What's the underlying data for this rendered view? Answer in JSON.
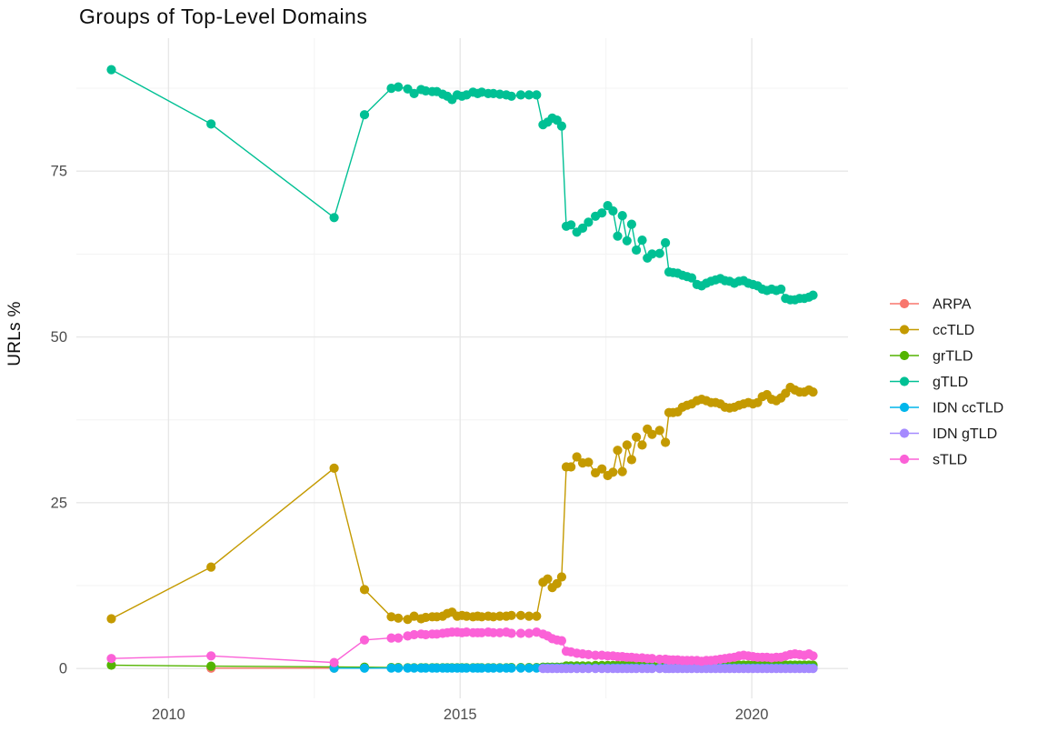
{
  "page": {
    "background": "#ffffff"
  },
  "chart_data": {
    "type": "line",
    "title": "Groups of Top-Level Domains",
    "xlabel": "",
    "ylabel": "URLs %",
    "grid": true,
    "legend_position": "right",
    "axis_text_color": "#4d4d4d",
    "grid_major_color": "#e7e7e7",
    "grid_minor_color": "#f3f3f3",
    "xlim": [
      2008.42,
      2021.65
    ],
    "ylim": [
      -4.5,
      95.05
    ],
    "x_ticks": [
      2010,
      2015,
      2020
    ],
    "x_tick_labels": [
      "2010",
      "2015",
      "2020"
    ],
    "x_minor_ticks": [
      2012.5,
      2017.5
    ],
    "y_ticks": [
      0,
      25,
      50,
      75
    ],
    "y_tick_labels": [
      "0",
      "25",
      "50",
      "75"
    ],
    "y_minor_ticks": [
      12.5,
      37.5,
      62.5,
      87.5
    ],
    "x_dense": [
      2013.82,
      2013.94,
      2014.1,
      2014.21,
      2014.33,
      2014.41,
      2014.52,
      2014.6,
      2014.7,
      2014.78,
      2014.86,
      2014.95,
      2015.03,
      2015.11,
      2015.22,
      2015.3,
      2015.37,
      2015.48,
      2015.57,
      2015.68,
      2015.79,
      2015.88,
      2016.04,
      2016.18,
      2016.31,
      2016.42,
      2016.5,
      2016.58,
      2016.66,
      2016.74,
      2016.82,
      2016.9,
      2017.0,
      2017.1,
      2017.2,
      2017.32,
      2017.43,
      2017.53,
      2017.62,
      2017.7,
      2017.78,
      2017.86,
      2017.94,
      2018.02,
      2018.12,
      2018.21,
      2018.29,
      2018.42,
      2018.52,
      2018.58,
      2018.65,
      2018.73,
      2018.81,
      2018.89,
      2018.97,
      2019.06,
      2019.14,
      2019.22,
      2019.3,
      2019.38,
      2019.46,
      2019.54,
      2019.62,
      2019.7,
      2019.78,
      2019.86,
      2019.94,
      2020.02,
      2020.1,
      2020.18,
      2020.26,
      2020.34,
      2020.42,
      2020.5,
      2020.58,
      2020.66,
      2020.74,
      2020.82,
      2020.9,
      2020.98,
      2021.05
    ],
    "series": [
      {
        "name": "ARPA",
        "color": "#F8766D",
        "early": [
          [
            2010.73,
            0.05
          ],
          [
            2012.84,
            0.05
          ]
        ]
      },
      {
        "name": "ccTLD",
        "color": "#C49A00",
        "early": [
          [
            2009.02,
            7.5
          ],
          [
            2010.73,
            15.3
          ],
          [
            2012.84,
            30.2
          ],
          [
            2013.36,
            11.9
          ]
        ],
        "dense": [
          7.8,
          7.6,
          7.4,
          7.9,
          7.5,
          7.7,
          7.8,
          7.8,
          7.9,
          8.3,
          8.5,
          7.9,
          8.0,
          7.9,
          7.8,
          7.9,
          7.8,
          7.9,
          7.8,
          7.9,
          7.9,
          8.0,
          8.0,
          7.9,
          7.9,
          13.0,
          13.5,
          12.2,
          12.8,
          13.8,
          30.4,
          30.4,
          31.9,
          31.0,
          31.1,
          29.5,
          30.1,
          29.1,
          29.6,
          32.9,
          29.7,
          33.7,
          31.5,
          34.9,
          33.7,
          36.1,
          35.3,
          35.9,
          34.1,
          38.6,
          38.6,
          38.7,
          39.4,
          39.7,
          39.9,
          40.4,
          40.6,
          40.4,
          40.1,
          40.1,
          39.9,
          39.4,
          39.3,
          39.4,
          39.7,
          39.9,
          40.1,
          39.9,
          40.1,
          41.0,
          41.3,
          40.6,
          40.4,
          40.8,
          41.5,
          42.4,
          42.0,
          41.7,
          41.7,
          42.0,
          41.7
        ]
      },
      {
        "name": "grTLD",
        "color": "#53B400",
        "early": [
          [
            2009.02,
            0.5
          ],
          [
            2010.73,
            0.35
          ],
          [
            2012.84,
            0.25
          ],
          [
            2013.36,
            0.2
          ]
        ],
        "dense": [
          0.15,
          0.15,
          0.12,
          0.12,
          0.12,
          0.12,
          0.12,
          0.12,
          0.12,
          0.12,
          0.12,
          0.12,
          0.12,
          0.12,
          0.12,
          0.12,
          0.12,
          0.12,
          0.12,
          0.12,
          0.12,
          0.15,
          0.15,
          0.15,
          0.15,
          0.2,
          0.2,
          0.2,
          0.2,
          0.2,
          0.4,
          0.4,
          0.4,
          0.4,
          0.4,
          0.45,
          0.45,
          0.45,
          0.45,
          0.45,
          0.45,
          0.45,
          0.45,
          0.45,
          0.45,
          0.45,
          0.45,
          0.45,
          0.45,
          0.45,
          0.45,
          0.45,
          0.45,
          0.45,
          0.45,
          0.45,
          0.45,
          0.45,
          0.45,
          0.45,
          0.45,
          0.45,
          0.45,
          0.5,
          0.5,
          0.5,
          0.5,
          0.5,
          0.5,
          0.5,
          0.5,
          0.5,
          0.5,
          0.5,
          0.5,
          0.5,
          0.5,
          0.5,
          0.5,
          0.5,
          0.5
        ]
      },
      {
        "name": "gTLD",
        "color": "#00C094",
        "early": [
          [
            2009.02,
            90.3
          ],
          [
            2010.73,
            82.1
          ],
          [
            2012.84,
            68.0
          ],
          [
            2013.36,
            83.5
          ]
        ],
        "dense": [
          87.5,
          87.7,
          87.4,
          86.7,
          87.3,
          87.1,
          87.0,
          87.0,
          86.6,
          86.3,
          85.8,
          86.5,
          86.3,
          86.5,
          86.9,
          86.7,
          86.9,
          86.7,
          86.7,
          86.6,
          86.5,
          86.3,
          86.5,
          86.5,
          86.5,
          82.0,
          82.4,
          83.0,
          82.7,
          81.8,
          66.7,
          66.9,
          65.8,
          66.4,
          67.3,
          68.2,
          68.7,
          69.8,
          69.0,
          65.2,
          68.3,
          64.5,
          67.0,
          63.1,
          64.6,
          61.9,
          62.5,
          62.6,
          64.2,
          59.8,
          59.7,
          59.6,
          59.3,
          59.1,
          58.9,
          57.9,
          57.7,
          58.1,
          58.4,
          58.6,
          58.8,
          58.5,
          58.4,
          58.1,
          58.4,
          58.5,
          58.1,
          57.9,
          57.7,
          57.2,
          57.0,
          57.2,
          57.0,
          57.2,
          55.8,
          55.6,
          55.6,
          55.8,
          55.8,
          56.0,
          56.3
        ]
      },
      {
        "name": "IDN ccTLD",
        "color": "#00B6EB",
        "early": [
          [
            2012.84,
            0.05
          ],
          [
            2013.36,
            0.05
          ]
        ],
        "dense_const": 0.06,
        "dense_from": 0
      },
      {
        "name": "IDN gTLD",
        "color": "#A58AFF",
        "early": [],
        "dense_const": 0.0,
        "dense_from": 25
      },
      {
        "name": "sTLD",
        "color": "#FB61D7",
        "early": [
          [
            2009.02,
            1.5
          ],
          [
            2010.73,
            1.9
          ],
          [
            2012.84,
            0.9
          ],
          [
            2013.36,
            4.3
          ]
        ],
        "dense": [
          4.6,
          4.6,
          4.9,
          5.1,
          5.2,
          5.1,
          5.2,
          5.2,
          5.3,
          5.4,
          5.5,
          5.5,
          5.4,
          5.5,
          5.4,
          5.4,
          5.4,
          5.5,
          5.4,
          5.4,
          5.5,
          5.3,
          5.3,
          5.3,
          5.5,
          5.2,
          4.9,
          4.5,
          4.3,
          4.2,
          2.6,
          2.5,
          2.3,
          2.2,
          2.1,
          2.0,
          2.0,
          1.9,
          1.9,
          1.8,
          1.8,
          1.7,
          1.7,
          1.6,
          1.6,
          1.5,
          1.5,
          1.4,
          1.4,
          1.3,
          1.3,
          1.3,
          1.2,
          1.2,
          1.2,
          1.2,
          1.1,
          1.2,
          1.2,
          1.3,
          1.4,
          1.5,
          1.6,
          1.7,
          1.9,
          2.0,
          1.9,
          1.8,
          1.7,
          1.7,
          1.7,
          1.6,
          1.7,
          1.7,
          1.9,
          2.1,
          2.2,
          2.1,
          2.0,
          2.2,
          1.9
        ]
      }
    ]
  }
}
